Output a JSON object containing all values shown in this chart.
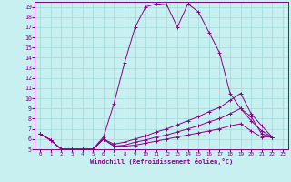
{
  "xlabel": "Windchill (Refroidissement éolien,°C)",
  "bg_color": "#c8f0f0",
  "line_color": "#880088",
  "grid_color": "#a0d8d8",
  "xlim": [
    -0.5,
    23.5
  ],
  "ylim": [
    5,
    19.5
  ],
  "xticks": [
    0,
    1,
    2,
    3,
    4,
    5,
    6,
    7,
    8,
    9,
    10,
    11,
    12,
    13,
    14,
    15,
    16,
    17,
    18,
    19,
    20,
    21,
    22,
    23
  ],
  "yticks": [
    5,
    6,
    7,
    8,
    9,
    10,
    11,
    12,
    13,
    14,
    15,
    16,
    17,
    18,
    19
  ],
  "series": [
    [
      6.5,
      5.9,
      5.0,
      5.0,
      5.0,
      5.0,
      6.2,
      9.5,
      13.5,
      17.0,
      19.0,
      19.3,
      19.2,
      17.0,
      19.3,
      18.5,
      16.5,
      14.5,
      10.5,
      9.0,
      8.2,
      6.5,
      6.2
    ],
    [
      6.5,
      5.9,
      5.0,
      5.0,
      5.0,
      5.0,
      6.0,
      5.3,
      5.3,
      5.4,
      5.6,
      5.8,
      6.0,
      6.2,
      6.4,
      6.6,
      6.8,
      7.0,
      7.3,
      7.5,
      6.8,
      6.2,
      6.2
    ],
    [
      6.5,
      5.9,
      5.0,
      5.0,
      5.0,
      5.0,
      6.0,
      5.3,
      5.4,
      5.7,
      5.9,
      6.2,
      6.4,
      6.7,
      7.0,
      7.3,
      7.7,
      8.0,
      8.5,
      9.0,
      7.8,
      6.8,
      6.2
    ],
    [
      6.5,
      5.9,
      5.0,
      5.0,
      5.0,
      5.0,
      6.0,
      5.5,
      5.7,
      6.0,
      6.3,
      6.7,
      7.0,
      7.4,
      7.8,
      8.2,
      8.7,
      9.1,
      9.8,
      10.5,
      8.5,
      7.3,
      6.2
    ]
  ],
  "x_values": [
    0,
    1,
    2,
    3,
    4,
    5,
    6,
    7,
    8,
    9,
    10,
    11,
    12,
    13,
    14,
    15,
    16,
    17,
    18,
    19,
    20,
    21,
    22
  ]
}
